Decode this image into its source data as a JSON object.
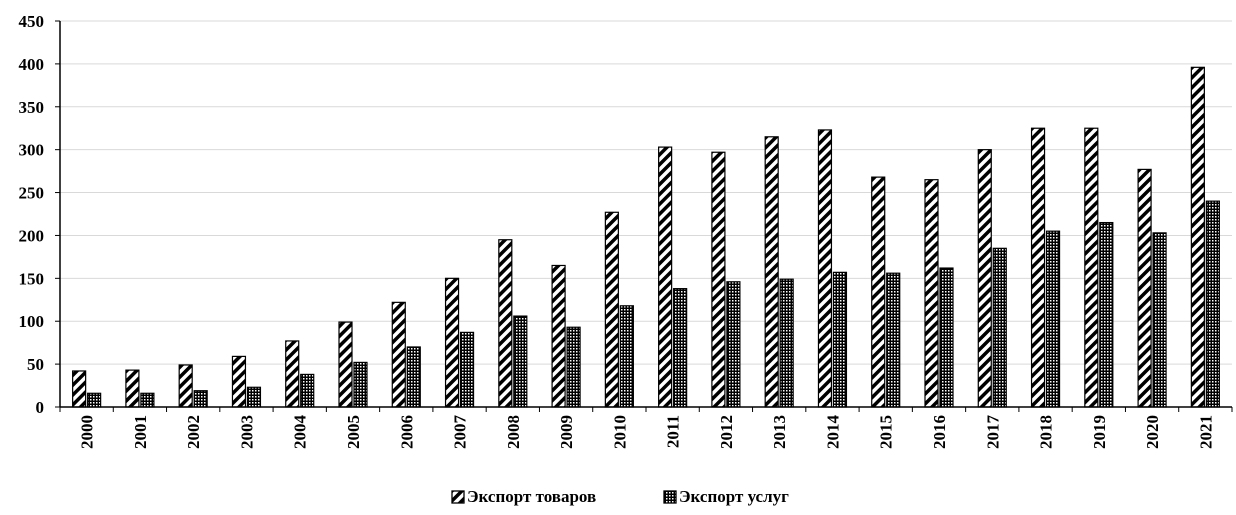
{
  "chart_data": {
    "type": "bar",
    "title": "",
    "xlabel": "",
    "ylabel": "",
    "categories": [
      "2000",
      "2001",
      "2002",
      "2003",
      "2004",
      "2005",
      "2006",
      "2007",
      "2008",
      "2009",
      "2010",
      "2011",
      "2012",
      "2013",
      "2014",
      "2015",
      "2016",
      "2017",
      "2018",
      "2019",
      "2020",
      "2021"
    ],
    "series": [
      {
        "name": "Экспорт товаров",
        "pattern": "diagonal-hatch",
        "values": [
          42,
          43,
          49,
          59,
          77,
          99,
          122,
          150,
          195,
          165,
          227,
          303,
          297,
          315,
          323,
          268,
          265,
          300,
          325,
          325,
          277,
          396
        ]
      },
      {
        "name": "Экспорт услуг",
        "pattern": "dots",
        "values": [
          16,
          16,
          19,
          23,
          38,
          52,
          70,
          87,
          106,
          93,
          118,
          138,
          146,
          149,
          157,
          156,
          162,
          185,
          205,
          215,
          203,
          240
        ]
      }
    ],
    "ylim": [
      0,
      450
    ],
    "yticks": [
      0,
      50,
      100,
      150,
      200,
      250,
      300,
      350,
      400,
      450
    ],
    "grid": true,
    "legend_position": "bottom-center",
    "colors": {
      "bar_stroke": "#000000",
      "pattern_ink": "#000000",
      "grid": "#d9d9d9",
      "axis": "#000000"
    }
  }
}
